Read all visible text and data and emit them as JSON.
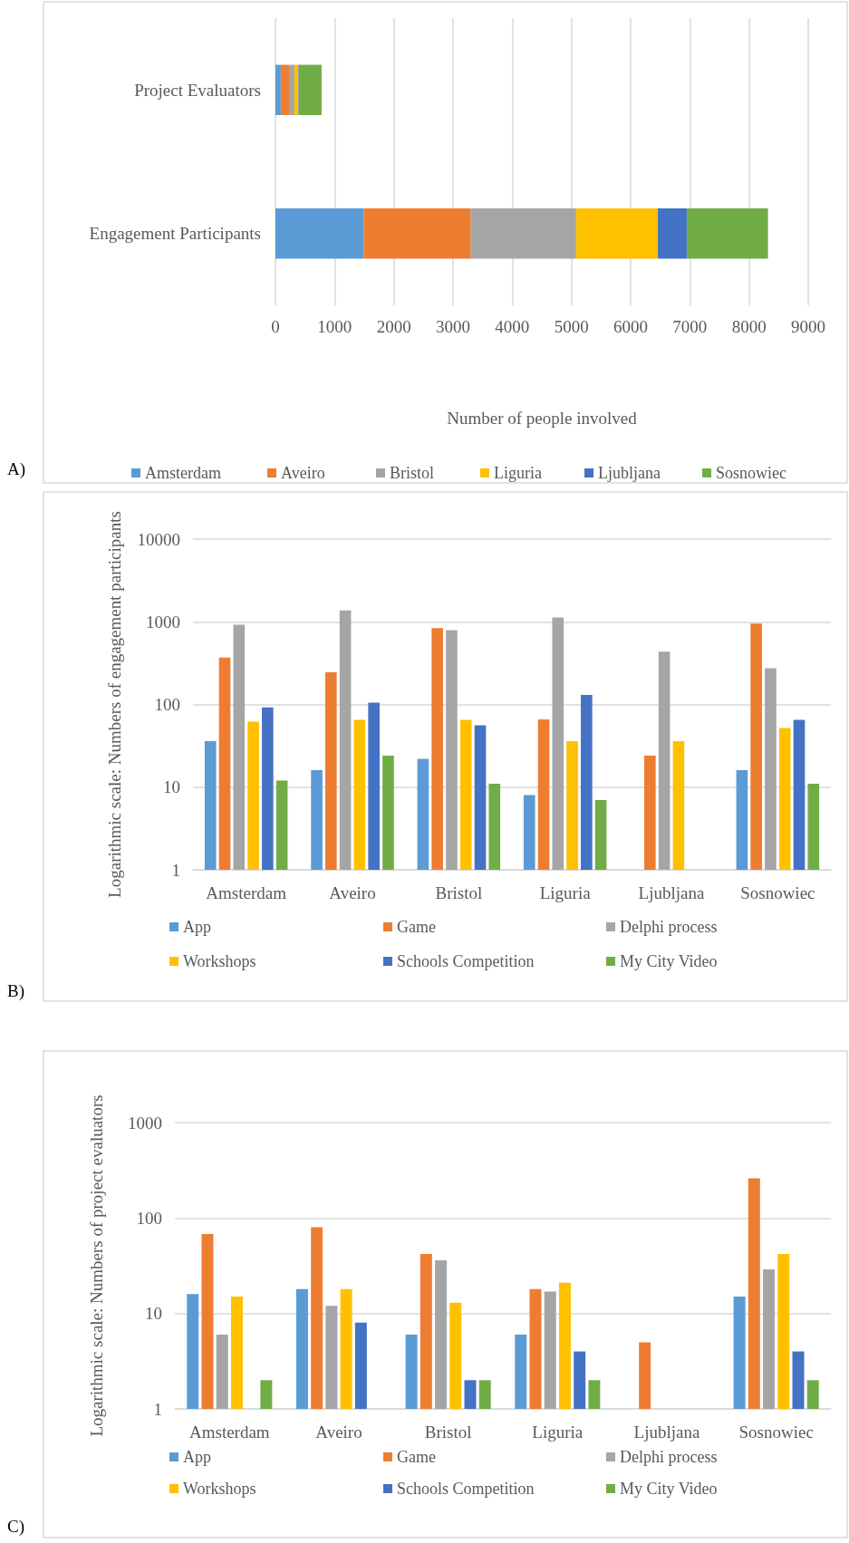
{
  "chart_data": [
    {
      "type": "bar",
      "orientation": "horizontal",
      "stacked": true,
      "categories": [
        "Project Evaluators",
        "Engagement Participants"
      ],
      "xlabel": "Number of people involved",
      "xlim": [
        0,
        9000
      ],
      "xticks": [
        0,
        1000,
        2000,
        3000,
        4000,
        5000,
        6000,
        7000,
        8000,
        9000
      ],
      "grid": "x",
      "legend": "bottom",
      "annotations": [
        "A)"
      ],
      "series": [
        {
          "name": "Amsterdam",
          "color": "#5b9bd5",
          "values": [
            90,
            1490
          ]
        },
        {
          "name": "Aveiro",
          "color": "#ed7d31",
          "values": [
            140,
            1810
          ]
        },
        {
          "name": "Bristol",
          "color": "#a5a5a5",
          "values": [
            90,
            1780
          ]
        },
        {
          "name": "Liguria",
          "color": "#ffc000",
          "values": [
            70,
            1380
          ]
        },
        {
          "name": "Ljubljana",
          "color": "#4472c4",
          "values": [
            20,
            490
          ]
        },
        {
          "name": "Sosnowiec",
          "color": "#70ad47",
          "values": [
            370,
            1370
          ]
        }
      ]
    },
    {
      "type": "bar",
      "categories": [
        "Amsterdam",
        "Aveiro",
        "Bristol",
        "Liguria",
        "Ljubljana",
        "Sosnowiec"
      ],
      "ylabel": "Logarithmic scale: Numbers of engagement participants",
      "log": "y",
      "ylim": [
        1,
        10000
      ],
      "yticks": [
        1,
        10,
        100,
        1000,
        10000
      ],
      "grid": "y",
      "legend": "bottom",
      "annotations": [
        "B)"
      ],
      "series": [
        {
          "name": "App",
          "color": "#5b9bd5",
          "values": [
            36,
            16,
            22,
            8,
            null,
            16
          ]
        },
        {
          "name": "Game",
          "color": "#ed7d31",
          "values": [
            370,
            245,
            840,
            66,
            24,
            950
          ]
        },
        {
          "name": "Delphi process",
          "color": "#a5a5a5",
          "values": [
            920,
            1370,
            790,
            1130,
            435,
            274
          ]
        },
        {
          "name": "Workshops",
          "color": "#ffc000",
          "values": [
            62,
            65,
            65,
            36,
            36,
            52
          ]
        },
        {
          "name": "Schools Competition",
          "color": "#4472c4",
          "values": [
            92,
            105,
            56,
            130,
            null,
            65
          ]
        },
        {
          "name": "My City Video",
          "color": "#70ad47",
          "values": [
            12,
            24,
            11,
            7,
            null,
            11
          ]
        }
      ]
    },
    {
      "type": "bar",
      "categories": [
        "Amsterdam",
        "Aveiro",
        "Bristol",
        "Liguria",
        "Ljubljana",
        "Sosnowiec"
      ],
      "ylabel": "Logarithmic scale: Numbers of project evaluators",
      "log": "y",
      "ylim": [
        1,
        1000
      ],
      "yticks": [
        1,
        10,
        100,
        1000
      ],
      "grid": "y",
      "legend": "bottom",
      "annotations": [
        "C)"
      ],
      "series": [
        {
          "name": "App",
          "color": "#5b9bd5",
          "values": [
            16,
            18,
            6,
            6,
            null,
            15
          ]
        },
        {
          "name": "Game",
          "color": "#ed7d31",
          "values": [
            68,
            80,
            42,
            18,
            5,
            260
          ]
        },
        {
          "name": "Delphi process",
          "color": "#a5a5a5",
          "values": [
            6,
            12,
            36,
            17,
            null,
            29
          ]
        },
        {
          "name": "Workshops",
          "color": "#ffc000",
          "values": [
            15,
            18,
            13,
            21,
            null,
            42
          ]
        },
        {
          "name": "Schools Competition",
          "color": "#4472c4",
          "values": [
            null,
            8,
            2,
            4,
            null,
            4
          ]
        },
        {
          "name": "My City Video",
          "color": "#70ad47",
          "values": [
            2,
            null,
            2,
            2,
            null,
            2
          ]
        }
      ]
    }
  ]
}
